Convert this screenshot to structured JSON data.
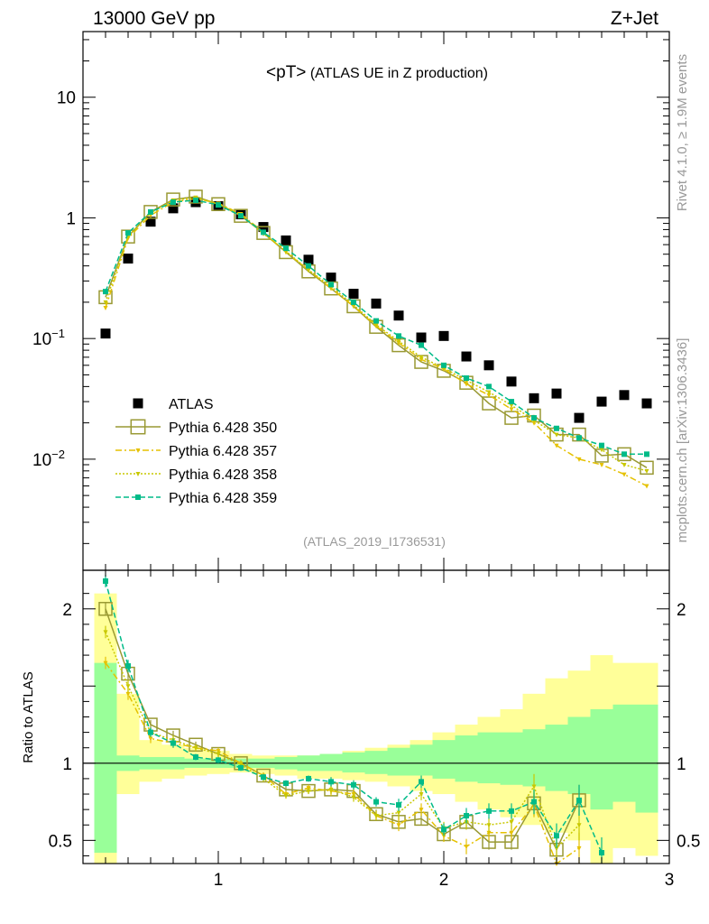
{
  "header": {
    "left": "13000 GeV pp",
    "right": "Z+Jet"
  },
  "side_labels": {
    "rivet": "Rivet 4.1.0, ≥ 1.9M events",
    "mcplots": "mcplots.cern.ch [arXiv:1306.3436]"
  },
  "chart_data": {
    "type": "scatter",
    "title": "<pT> (ATLAS UE in Z production)",
    "analysis_label": "(ATLAS_2019_I1736531)",
    "xlim": [
      0.4,
      3.0
    ],
    "main": {
      "yscale": "log",
      "ylim": [
        0.0012,
        35
      ],
      "y_ticks": [
        {
          "value": 10,
          "label": "10",
          "exp": ""
        },
        {
          "value": 1,
          "label": "1",
          "exp": ""
        },
        {
          "value": 0.1,
          "label": "10",
          "exp": "−1"
        },
        {
          "value": 0.01,
          "label": "10",
          "exp": "−2"
        }
      ]
    },
    "ratio": {
      "ylabel": "Ratio to ATLAS",
      "ylim": [
        0.35,
        2.25
      ],
      "y_ticks": [
        {
          "value": 2,
          "label": "2"
        },
        {
          "value": 1,
          "label": "1"
        },
        {
          "value": 0.5,
          "label": "0.5"
        }
      ]
    },
    "x_ticks": [
      {
        "value": 1,
        "label": "1"
      },
      {
        "value": 2,
        "label": "2"
      },
      {
        "value": 3,
        "label": "3"
      }
    ],
    "x_edges": [
      0.45,
      0.55,
      0.65,
      0.75,
      0.85,
      0.95,
      1.05,
      1.15,
      1.25,
      1.35,
      1.45,
      1.55,
      1.65,
      1.75,
      1.85,
      1.95,
      2.05,
      2.15,
      2.25,
      2.35,
      2.45,
      2.55,
      2.65,
      2.75,
      2.85,
      2.95
    ],
    "x": [
      0.5,
      0.6,
      0.7,
      0.8,
      0.9,
      1.0,
      1.1,
      1.2,
      1.3,
      1.4,
      1.5,
      1.6,
      1.7,
      1.8,
      1.9,
      2.0,
      2.1,
      2.2,
      2.3,
      2.4,
      2.5,
      2.6,
      2.7,
      2.8,
      2.9
    ],
    "band_yellow": [
      [
        0.35,
        2.1
      ],
      [
        0.8,
        1.45
      ],
      [
        0.88,
        1.15
      ],
      [
        0.9,
        1.12
      ],
      [
        0.92,
        1.1
      ],
      [
        0.93,
        1.08
      ],
      [
        0.94,
        1.06
      ],
      [
        0.93,
        1.05
      ],
      [
        0.92,
        1.05
      ],
      [
        0.9,
        1.05
      ],
      [
        0.9,
        1.06
      ],
      [
        0.89,
        1.08
      ],
      [
        0.88,
        1.1
      ],
      [
        0.85,
        1.12
      ],
      [
        0.82,
        1.15
      ],
      [
        0.8,
        1.2
      ],
      [
        0.75,
        1.25
      ],
      [
        0.7,
        1.3
      ],
      [
        0.65,
        1.35
      ],
      [
        0.6,
        1.45
      ],
      [
        0.55,
        1.55
      ],
      [
        0.5,
        1.6
      ],
      [
        0.35,
        1.7
      ],
      [
        0.45,
        1.65
      ],
      [
        0.4,
        1.65
      ]
    ],
    "band_green": [
      [
        0.42,
        1.65
      ],
      [
        0.95,
        1.05
      ],
      [
        0.96,
        1.04
      ],
      [
        0.96,
        1.04
      ],
      [
        0.97,
        1.03
      ],
      [
        0.97,
        1.03
      ],
      [
        0.97,
        1.03
      ],
      [
        0.97,
        1.03
      ],
      [
        0.96,
        1.04
      ],
      [
        0.95,
        1.05
      ],
      [
        0.95,
        1.06
      ],
      [
        0.94,
        1.07
      ],
      [
        0.93,
        1.08
      ],
      [
        0.92,
        1.1
      ],
      [
        0.92,
        1.12
      ],
      [
        0.9,
        1.15
      ],
      [
        0.88,
        1.18
      ],
      [
        0.87,
        1.2
      ],
      [
        0.86,
        1.2
      ],
      [
        0.85,
        1.22
      ],
      [
        0.82,
        1.25
      ],
      [
        0.8,
        1.3
      ],
      [
        0.7,
        1.35
      ],
      [
        0.75,
        1.38
      ],
      [
        0.68,
        1.38
      ]
    ],
    "series": [
      {
        "name": "ATLAS",
        "style": "data",
        "color": "#000000",
        "values": [
          0.11,
          0.46,
          0.93,
          1.2,
          1.35,
          1.25,
          1.07,
          0.84,
          0.65,
          0.45,
          0.32,
          0.235,
          0.195,
          0.155,
          0.102,
          0.105,
          0.071,
          0.06,
          0.044,
          0.032,
          0.035,
          0.022,
          0.03,
          0.034,
          0.029
        ]
      },
      {
        "name": "Pythia 6.428 350",
        "style": "open-square",
        "color": "#999933",
        "values": [
          0.22,
          0.7,
          1.12,
          1.42,
          1.5,
          1.3,
          1.04,
          0.75,
          0.52,
          0.36,
          0.26,
          0.185,
          0.125,
          0.088,
          0.064,
          0.054,
          0.043,
          0.029,
          0.022,
          0.023,
          0.016,
          0.016,
          0.0107,
          0.011,
          0.0085
        ],
        "ratio": [
          2.0,
          1.58,
          1.25,
          1.18,
          1.12,
          1.06,
          1.0,
          0.92,
          0.83,
          0.82,
          0.83,
          0.82,
          0.67,
          0.62,
          0.64,
          0.54,
          0.62,
          0.49,
          0.49,
          0.74,
          0.44,
          0.76,
          null,
          null,
          null
        ],
        "ratio_err": [
          0.04,
          0.04,
          0.03,
          0.03,
          0.02,
          0.02,
          0.02,
          0.02,
          0.02,
          0.02,
          0.03,
          0.03,
          0.03,
          0.04,
          0.04,
          0.04,
          0.05,
          0.05,
          0.05,
          0.08,
          0.08,
          0.1,
          0,
          0,
          0
        ]
      },
      {
        "name": "Pythia 6.428 357",
        "style": "dash-dot-triangle",
        "color": "#e5c100",
        "values": [
          0.18,
          0.68,
          1.05,
          1.35,
          1.45,
          1.32,
          1.08,
          0.76,
          0.52,
          0.37,
          0.26,
          0.185,
          0.127,
          0.092,
          0.067,
          0.056,
          0.042,
          0.034,
          0.026,
          0.02,
          0.013,
          0.01,
          0.009,
          0.0075,
          0.006
        ],
        "ratio": [
          1.65,
          1.45,
          1.16,
          1.13,
          1.1,
          1.08,
          1.0,
          0.92,
          0.8,
          0.84,
          0.82,
          0.8,
          0.66,
          0.6,
          0.7,
          0.53,
          0.46,
          0.55,
          0.55,
          0.73,
          0.3,
          0.45,
          null,
          null,
          null
        ],
        "ratio_err": [
          0.04,
          0.04,
          0.03,
          0.03,
          0.02,
          0.02,
          0.02,
          0.02,
          0.02,
          0.02,
          0.03,
          0.03,
          0.03,
          0.04,
          0.04,
          0.04,
          0.05,
          0.05,
          0.05,
          0.08,
          0.08,
          0.1,
          0,
          0,
          0
        ]
      },
      {
        "name": "Pythia 6.428 358",
        "style": "dotted-triangle",
        "color": "#c8c800",
        "values": [
          0.2,
          0.7,
          1.1,
          1.4,
          1.48,
          1.3,
          1.06,
          0.74,
          0.53,
          0.37,
          0.27,
          0.19,
          0.13,
          0.095,
          0.07,
          0.057,
          0.045,
          0.036,
          0.028,
          0.021,
          0.016,
          0.015,
          0.012,
          0.009,
          0.008
        ],
        "ratio": [
          1.85,
          1.5,
          1.2,
          1.15,
          1.1,
          1.06,
          0.99,
          0.9,
          0.79,
          0.82,
          0.83,
          0.78,
          0.66,
          0.68,
          0.8,
          0.58,
          0.62,
          0.6,
          0.62,
          0.85,
          0.45,
          0.6,
          null,
          null,
          null
        ],
        "ratio_err": [
          0.04,
          0.04,
          0.03,
          0.03,
          0.02,
          0.02,
          0.02,
          0.02,
          0.02,
          0.02,
          0.03,
          0.03,
          0.03,
          0.04,
          0.04,
          0.04,
          0.05,
          0.05,
          0.05,
          0.08,
          0.08,
          0.1,
          0,
          0,
          0
        ]
      },
      {
        "name": "Pythia 6.428 359",
        "style": "dashed-square",
        "color": "#00bb88",
        "values": [
          0.245,
          0.75,
          1.12,
          1.35,
          1.4,
          1.28,
          1.04,
          0.76,
          0.56,
          0.4,
          0.28,
          0.2,
          0.14,
          0.105,
          0.088,
          0.06,
          0.047,
          0.04,
          0.03,
          0.022,
          0.018,
          0.015,
          0.013,
          0.011,
          0.011
        ],
        "ratio": [
          2.18,
          1.63,
          1.2,
          1.13,
          1.04,
          1.02,
          0.97,
          0.91,
          0.87,
          0.9,
          0.88,
          0.86,
          0.75,
          0.73,
          0.88,
          0.57,
          0.66,
          0.69,
          0.69,
          0.75,
          0.53,
          0.76,
          0.42,
          null,
          null
        ],
        "ratio_err": [
          0.04,
          0.04,
          0.03,
          0.03,
          0.02,
          0.02,
          0.02,
          0.02,
          0.02,
          0.02,
          0.03,
          0.03,
          0.03,
          0.04,
          0.04,
          0.04,
          0.05,
          0.05,
          0.05,
          0.08,
          0.08,
          0.1,
          0.1,
          0,
          0
        ]
      }
    ]
  }
}
